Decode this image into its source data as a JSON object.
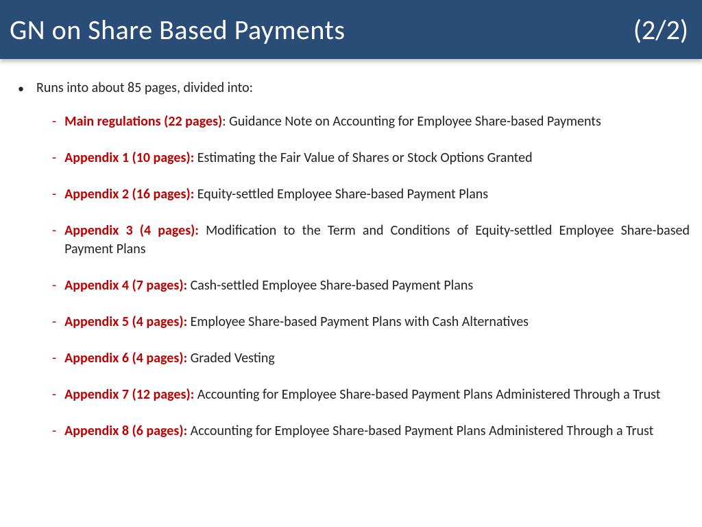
{
  "header": {
    "title": "GN on Share Based Payments",
    "page": "(2/2)",
    "bg_color": "#2a4d78",
    "text_color": "#ffffff"
  },
  "intro": "Runs into about 85 pages, divided into:",
  "accent_color": "#c00000",
  "items": [
    {
      "label": "Main regulations (22 pages)",
      "sep": ": ",
      "desc": "Guidance Note on Accounting for Employee Share-based Payments"
    },
    {
      "label": "Appendix 1 (10 pages):",
      "sep": " ",
      "desc": "Estimating the Fair Value of Shares or Stock Options Granted"
    },
    {
      "label": "Appendix 2 (16 pages):",
      "sep": " ",
      "desc": "Equity-settled Employee Share-based Payment Plans"
    },
    {
      "label": "Appendix 3 (4 pages):",
      "sep": " ",
      "desc": "Modification to the Term and Conditions of Equity-settled Employee Share-based Payment Plans"
    },
    {
      "label": "Appendix 4 (7 pages):",
      "sep": " ",
      "desc": "Cash-settled Employee Share-based Payment Plans"
    },
    {
      "label": "Appendix 5 (4 pages):",
      "sep": " ",
      "desc": "Employee Share-based Payment Plans with Cash Alternatives"
    },
    {
      "label": "Appendix 6 (4 pages):",
      "sep": " ",
      "desc": "Graded Vesting"
    },
    {
      "label": "Appendix 7 (12 pages):",
      "sep": " ",
      "desc": "Accounting for Employee Share-based Payment Plans Administered Through a Trust"
    },
    {
      "label": "Appendix 8 (6 pages):",
      "sep": " ",
      "desc": "Accounting for Employee Share-based Payment Plans Administered Through a Trust"
    }
  ]
}
